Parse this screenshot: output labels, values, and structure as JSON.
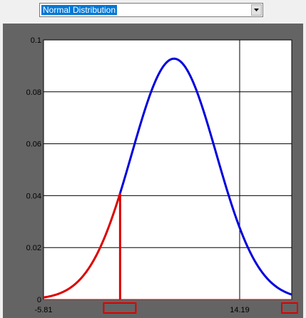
{
  "distribution_select": {
    "selected": "Normal Distribution"
  },
  "colors": {
    "frame": "#646464",
    "plot_background": "#ffffff",
    "pdf_curve": "#0000dd",
    "shaded_tail": "#dd0000",
    "grid": "#000000"
  },
  "chart_data": {
    "type": "line",
    "title": "",
    "xlabel": "",
    "ylabel": "",
    "xlim": [
      -5.81,
      19.5
    ],
    "ylim": [
      0,
      0.1
    ],
    "grid": true,
    "legend": "none",
    "y_ticks": [
      {
        "value": 0,
        "label": "0"
      },
      {
        "value": 0.02,
        "label": "0.02"
      },
      {
        "value": 0.04,
        "label": "0.04"
      },
      {
        "value": 0.06,
        "label": "0.06"
      },
      {
        "value": 0.08,
        "label": "0.08"
      },
      {
        "value": 0.1,
        "label": "0.1"
      }
    ],
    "x_ticks": [
      {
        "value": -5.81,
        "label": "-5.81"
      },
      {
        "value": 14.19,
        "label": "14.19"
      }
    ],
    "distribution": {
      "name": "Normal",
      "mean": 7.5,
      "sd": 4.3
    },
    "series": [
      {
        "role": "pdf",
        "color": "#0000dd"
      },
      {
        "role": "shaded-lower-tail",
        "color": "#dd0000",
        "to_x": 2.0
      }
    ],
    "markers": [
      {
        "role": "lower-bound-marker",
        "x": 2.0
      },
      {
        "role": "upper-bound-marker",
        "x": 19.5
      }
    ]
  }
}
